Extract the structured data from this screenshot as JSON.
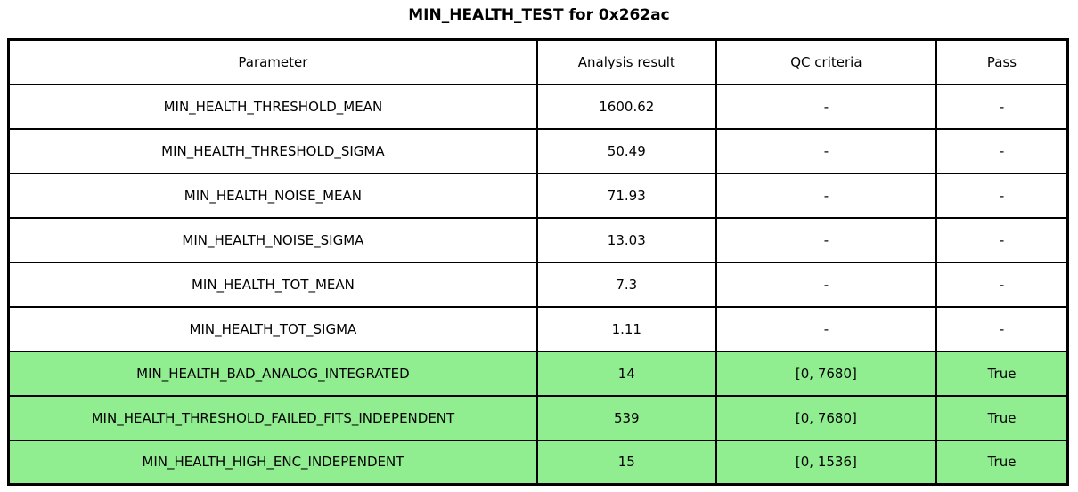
{
  "title": "MIN_HEALTH_TEST for 0x262ac",
  "colors": {
    "highlight_green": "#90EE90",
    "row_background": "#FFFFFF",
    "border": "#000000"
  },
  "table": {
    "columns": [
      "Parameter",
      "Analysis result",
      "QC criteria",
      "Pass"
    ],
    "rows": [
      {
        "parameter": "MIN_HEALTH_THRESHOLD_MEAN",
        "analysis_result": "1600.62",
        "qc_criteria": "-",
        "pass": "-",
        "highlight": false
      },
      {
        "parameter": "MIN_HEALTH_THRESHOLD_SIGMA",
        "analysis_result": "50.49",
        "qc_criteria": "-",
        "pass": "-",
        "highlight": false
      },
      {
        "parameter": "MIN_HEALTH_NOISE_MEAN",
        "analysis_result": "71.93",
        "qc_criteria": "-",
        "pass": "-",
        "highlight": false
      },
      {
        "parameter": "MIN_HEALTH_NOISE_SIGMA",
        "analysis_result": "13.03",
        "qc_criteria": "-",
        "pass": "-",
        "highlight": false
      },
      {
        "parameter": "MIN_HEALTH_TOT_MEAN",
        "analysis_result": "7.3",
        "qc_criteria": "-",
        "pass": "-",
        "highlight": false
      },
      {
        "parameter": "MIN_HEALTH_TOT_SIGMA",
        "analysis_result": "1.11",
        "qc_criteria": "-",
        "pass": "-",
        "highlight": false
      },
      {
        "parameter": "MIN_HEALTH_BAD_ANALOG_INTEGRATED",
        "analysis_result": "14",
        "qc_criteria": "[0, 7680]",
        "pass": "True",
        "highlight": true
      },
      {
        "parameter": "MIN_HEALTH_THRESHOLD_FAILED_FITS_INDEPENDENT",
        "analysis_result": "539",
        "qc_criteria": "[0, 7680]",
        "pass": "True",
        "highlight": true
      },
      {
        "parameter": "MIN_HEALTH_HIGH_ENC_INDEPENDENT",
        "analysis_result": "15",
        "qc_criteria": "[0, 1536]",
        "pass": "True",
        "highlight": true
      }
    ]
  },
  "chart_data": {
    "type": "table",
    "title": "MIN_HEALTH_TEST for 0x262ac",
    "columns": [
      "Parameter",
      "Analysis result",
      "QC criteria",
      "Pass"
    ],
    "rows": [
      [
        "MIN_HEALTH_THRESHOLD_MEAN",
        "1600.62",
        "-",
        "-"
      ],
      [
        "MIN_HEALTH_THRESHOLD_SIGMA",
        "50.49",
        "-",
        "-"
      ],
      [
        "MIN_HEALTH_NOISE_MEAN",
        "71.93",
        "-",
        "-"
      ],
      [
        "MIN_HEALTH_NOISE_SIGMA",
        "13.03",
        "-",
        "-"
      ],
      [
        "MIN_HEALTH_TOT_MEAN",
        "7.3",
        "-",
        "-"
      ],
      [
        "MIN_HEALTH_TOT_SIGMA",
        "1.11",
        "-",
        "-"
      ],
      [
        "MIN_HEALTH_BAD_ANALOG_INTEGRATED",
        "14",
        "[0, 7680]",
        "True"
      ],
      [
        "MIN_HEALTH_THRESHOLD_FAILED_FITS_INDEPENDENT",
        "539",
        "[0, 7680]",
        "True"
      ],
      [
        "MIN_HEALTH_HIGH_ENC_INDEPENDENT",
        "15",
        "[0, 1536]",
        "True"
      ]
    ],
    "highlighted_row_indices": [
      6,
      7,
      8
    ],
    "highlight_color": "#90EE90",
    "legend_position": "none",
    "grid": true
  }
}
